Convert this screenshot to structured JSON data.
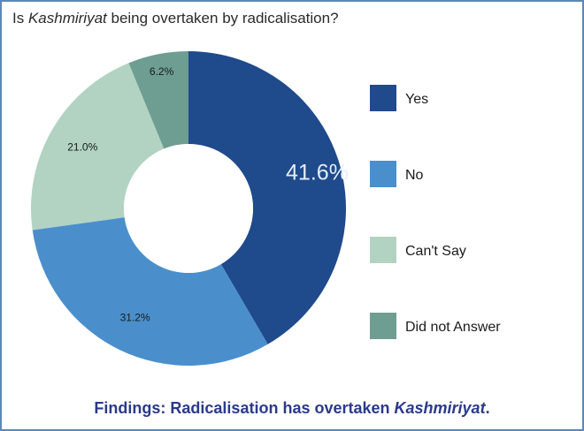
{
  "title": {
    "prefix": "Is ",
    "italic": "Kashmiriyat",
    "suffix": " being overtaken by radicalisation?"
  },
  "footer": {
    "prefix": "Findings: Radicalisation has overtaken ",
    "italic": "Kashmiriyat",
    "suffix": "."
  },
  "chart_data": {
    "type": "pie",
    "variant": "donut",
    "categories": [
      "Yes",
      "No",
      "Can't Say",
      "Did not Answer"
    ],
    "values": [
      41.6,
      31.2,
      21.0,
      6.2
    ],
    "labels": [
      "41.6%",
      "31.2%",
      "21.0%",
      "6.2%"
    ],
    "colors": [
      "#1f4a8c",
      "#4a8fcc",
      "#b2d3c2",
      "#6e9e91"
    ],
    "legend_position": "right"
  }
}
